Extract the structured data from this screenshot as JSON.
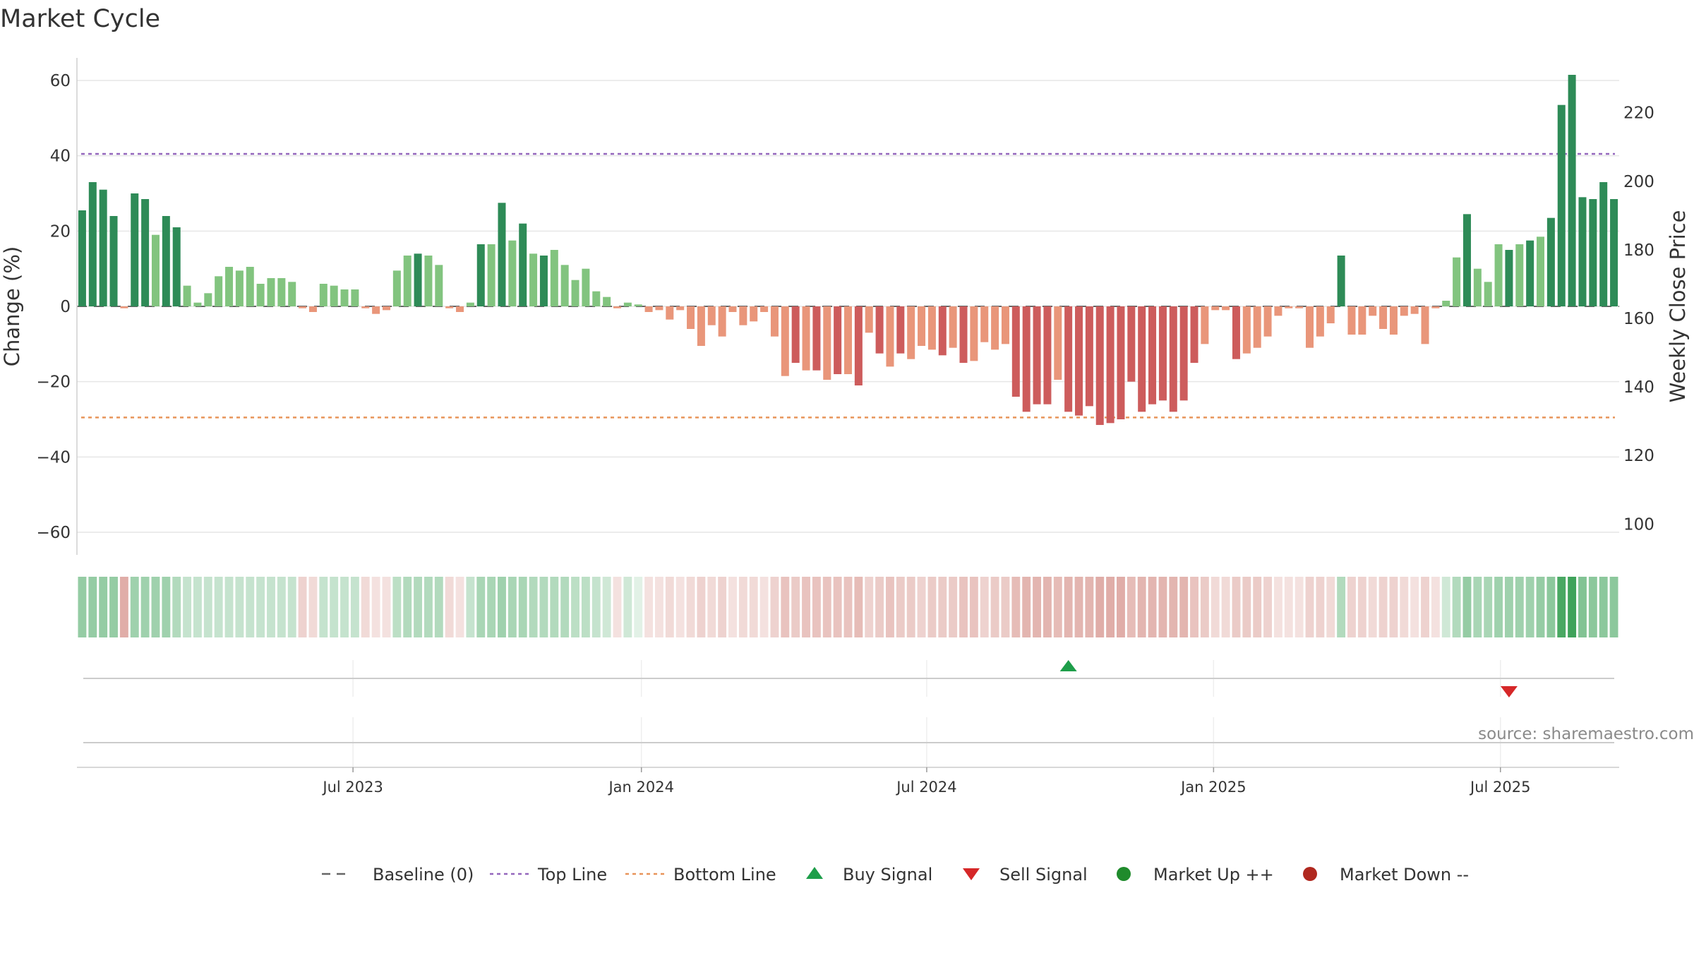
{
  "chart_data": {
    "type": "bar",
    "title": "Market Cycle",
    "ylabel": "Change (%)",
    "y2label": "Weekly Close Price",
    "ylim": [
      -66,
      66
    ],
    "y_ticks": [
      -60,
      -40,
      -20,
      0,
      20,
      40,
      60
    ],
    "y2lim": [
      91,
      236
    ],
    "y2_ticks": [
      100,
      120,
      140,
      160,
      180,
      200,
      220
    ],
    "top_line": 40.5,
    "bottom_line": -29.5,
    "x_ticks": [
      "Jul 2023",
      "Jan 2024",
      "Jul 2024",
      "Jan 2025",
      "Jul 2025"
    ],
    "source": "source: sharemaestro.com",
    "grid": true,
    "legend_position": "bottom-center",
    "legend": [
      {
        "label": "Baseline (0)",
        "marker": "dash",
        "color": "#666666"
      },
      {
        "label": "Top Line",
        "marker": "dotted",
        "color": "#9467bd"
      },
      {
        "label": "Bottom Line",
        "marker": "dotted",
        "color": "#e8955a"
      },
      {
        "label": "Buy Signal",
        "marker": "triangle-up",
        "color": "#1e9e4a"
      },
      {
        "label": "Sell Signal",
        "marker": "triangle-down",
        "color": "#d62728"
      },
      {
        "label": "Market Up ++",
        "marker": "circle",
        "color": "#1f8b2c"
      },
      {
        "label": "Market Down --",
        "marker": "circle",
        "color": "#b0281f"
      }
    ],
    "colors": {
      "up_dark": "#2e8b57",
      "up_light": "#82c47f",
      "down_dark": "#cd5c5c",
      "down_light": "#e9967a",
      "top_line": "#9467bd",
      "bottom_line": "#e8955a",
      "buy": "#1e9e4a",
      "sell": "#d62728"
    },
    "buy_signals": [
      94
    ],
    "sell_signals": [
      136
    ],
    "values": [
      25.5,
      33,
      31,
      24,
      -0.5,
      30,
      28.5,
      19,
      24,
      21,
      5.5,
      1,
      3.5,
      8,
      10.5,
      9.5,
      10.5,
      6,
      7.5,
      7.5,
      6.5,
      -0.5,
      -1.5,
      6,
      5.5,
      4.5,
      4.5,
      -0.5,
      -2,
      -1,
      9.5,
      13.5,
      14,
      13.5,
      11,
      -0.5,
      -1.5,
      1,
      16.5,
      16.5,
      27.5,
      17.5,
      22,
      14,
      13.5,
      15,
      11,
      7,
      10,
      4,
      2.5,
      -0.5,
      1,
      0.5,
      -1.5,
      -1,
      -3.5,
      -1,
      -6,
      -10.5,
      -5,
      -8,
      -1.5,
      -5,
      -4,
      -1.5,
      -8,
      -18.5,
      -15,
      -17,
      -17,
      -19.5,
      -18,
      -18,
      -21,
      -7,
      -12.5,
      -16,
      -12.5,
      -14,
      -10.5,
      -11.5,
      -13,
      -11,
      -15,
      -14.5,
      -9.5,
      -11.5,
      -10,
      -24,
      -28,
      -26,
      -26,
      -19.5,
      -28,
      -29,
      -26.5,
      -31.5,
      -31,
      -30,
      -20,
      -28,
      -26,
      -25,
      -28,
      -25,
      -15,
      -10,
      -1,
      -1,
      -14,
      -12.5,
      -11,
      -8,
      -2.5,
      -0.5,
      -0.5,
      -11,
      -8,
      -4.5,
      13.5,
      -7.5,
      -7.5,
      -2.5,
      -6,
      -7.5,
      -2.5,
      -2,
      -10,
      -0.5,
      1.5,
      13,
      24.5,
      10,
      6.5,
      16.5,
      15,
      16.5,
      17.5,
      18.5,
      23.5,
      53.5,
      61.5,
      29,
      28.5,
      33,
      28.5
    ],
    "strip_shades": [
      0.55,
      0.55,
      0.55,
      0.55,
      0.55,
      0.5,
      0.5,
      0.5,
      0.5,
      0.4,
      0.3,
      0.3,
      0.3,
      0.3,
      0.3,
      0.3,
      0.3,
      0.3,
      0.3,
      0.3,
      0.3,
      0.3,
      0.25,
      0.3,
      0.3,
      0.3,
      0.3,
      0.25,
      0.2,
      0.2,
      0.35,
      0.4,
      0.4,
      0.4,
      0.4,
      0.25,
      0.2,
      0.3,
      0.45,
      0.45,
      0.5,
      0.45,
      0.45,
      0.4,
      0.4,
      0.4,
      0.4,
      0.35,
      0.35,
      0.3,
      0.25,
      0.2,
      0.25,
      0.15,
      0.2,
      0.2,
      0.25,
      0.2,
      0.25,
      0.3,
      0.25,
      0.3,
      0.2,
      0.25,
      0.25,
      0.2,
      0.3,
      0.4,
      0.35,
      0.4,
      0.4,
      0.4,
      0.4,
      0.4,
      0.45,
      0.3,
      0.35,
      0.4,
      0.35,
      0.35,
      0.3,
      0.35,
      0.35,
      0.35,
      0.4,
      0.4,
      0.3,
      0.35,
      0.35,
      0.45,
      0.5,
      0.5,
      0.5,
      0.45,
      0.5,
      0.5,
      0.5,
      0.55,
      0.55,
      0.55,
      0.45,
      0.5,
      0.5,
      0.5,
      0.5,
      0.5,
      0.4,
      0.35,
      0.25,
      0.25,
      0.35,
      0.35,
      0.35,
      0.3,
      0.2,
      0.2,
      0.2,
      0.3,
      0.3,
      0.25,
      0.4,
      0.3,
      0.3,
      0.25,
      0.3,
      0.3,
      0.25,
      0.2,
      0.3,
      0.2,
      0.25,
      0.4,
      0.55,
      0.45,
      0.45,
      0.5,
      0.5,
      0.5,
      0.5,
      0.55,
      0.6,
      0.95,
      1,
      0.65,
      0.6,
      0.6,
      0.6
    ]
  }
}
